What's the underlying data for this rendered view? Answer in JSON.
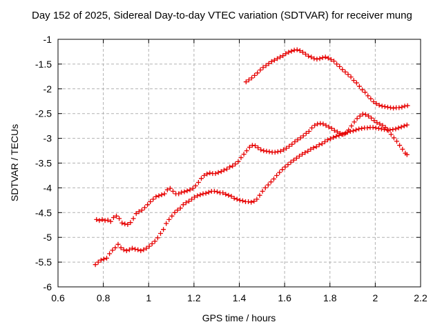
{
  "page": {
    "background": "#ffffff"
  },
  "chart_data": {
    "type": "scatter",
    "title": "Day 152 of 2025, Sidereal Day-to-day VTEC variation (SDTVAR) for receiver mung",
    "xlabel": "GPS time / hours",
    "ylabel": "SDTVAR / TECUs",
    "xlim": [
      0.6,
      2.2
    ],
    "ylim": [
      -6,
      -1
    ],
    "xticks": {
      "values": [
        0.6,
        0.8,
        1,
        1.2,
        1.4,
        1.6,
        1.8,
        2,
        2.2
      ],
      "labels": [
        "0.6",
        "0.8",
        "1",
        "1.2",
        "1.4",
        "1.6",
        "1.8",
        "2",
        "2.2"
      ]
    },
    "yticks": {
      "values": [
        -1,
        -1.5,
        -2,
        -2.5,
        -3,
        -3.5,
        -4,
        -4.5,
        -5,
        -5.5,
        -6
      ],
      "labels": [
        "-1",
        "-1.5",
        "-2",
        "-2.5",
        "-3",
        "-3.5",
        "-4",
        "-4.5",
        "-5",
        "-5.5",
        "-6"
      ]
    },
    "grid": true,
    "legend": "none",
    "marker": {
      "shape": "plus",
      "size": 7,
      "color": "#e60000"
    },
    "axis_color": "#000000",
    "grid_color": "#b0b0b0",
    "series": [
      {
        "name": "series-1",
        "points": [
          [
            1.43,
            -1.86
          ],
          [
            1.4425,
            -1.82
          ],
          [
            1.455,
            -1.78
          ],
          [
            1.4675,
            -1.73
          ],
          [
            1.48,
            -1.68
          ],
          [
            1.4925,
            -1.62
          ],
          [
            1.505,
            -1.57
          ],
          [
            1.5175,
            -1.53
          ],
          [
            1.53,
            -1.49
          ],
          [
            1.5425,
            -1.45
          ],
          [
            1.555,
            -1.42
          ],
          [
            1.5675,
            -1.39
          ],
          [
            1.58,
            -1.36
          ],
          [
            1.5925,
            -1.33
          ],
          [
            1.605,
            -1.29
          ],
          [
            1.6175,
            -1.26
          ],
          [
            1.63,
            -1.24
          ],
          [
            1.6425,
            -1.22
          ],
          [
            1.655,
            -1.21
          ],
          [
            1.6675,
            -1.23
          ],
          [
            1.68,
            -1.26
          ],
          [
            1.6925,
            -1.3
          ],
          [
            1.705,
            -1.34
          ],
          [
            1.7175,
            -1.36
          ],
          [
            1.73,
            -1.39
          ],
          [
            1.7425,
            -1.4
          ],
          [
            1.755,
            -1.39
          ],
          [
            1.7675,
            -1.37
          ],
          [
            1.78,
            -1.36
          ],
          [
            1.7925,
            -1.38
          ],
          [
            1.805,
            -1.41
          ],
          [
            1.8175,
            -1.44
          ],
          [
            1.83,
            -1.5
          ],
          [
            1.8425,
            -1.55
          ],
          [
            1.855,
            -1.61
          ],
          [
            1.8675,
            -1.66
          ],
          [
            1.88,
            -1.71
          ],
          [
            1.8925,
            -1.76
          ],
          [
            1.905,
            -1.83
          ],
          [
            1.9175,
            -1.88
          ],
          [
            1.93,
            -1.95
          ],
          [
            1.9425,
            -2.02
          ],
          [
            1.955,
            -2.07
          ],
          [
            1.9675,
            -2.14
          ],
          [
            1.98,
            -2.2
          ],
          [
            1.9925,
            -2.26
          ],
          [
            2.005,
            -2.3
          ],
          [
            2.0175,
            -2.33
          ],
          [
            2.03,
            -2.35
          ],
          [
            2.0425,
            -2.36
          ],
          [
            2.055,
            -2.37
          ],
          [
            2.0675,
            -2.38
          ],
          [
            2.08,
            -2.39
          ],
          [
            2.0925,
            -2.38
          ],
          [
            2.105,
            -2.38
          ],
          [
            2.1175,
            -2.37
          ],
          [
            2.13,
            -2.35
          ],
          [
            2.1425,
            -2.34
          ]
        ]
      },
      {
        "name": "series-2",
        "points": [
          [
            0.77,
            -4.64
          ],
          [
            0.7825,
            -4.66
          ],
          [
            0.795,
            -4.64
          ],
          [
            0.8075,
            -4.66
          ],
          [
            0.82,
            -4.65
          ],
          [
            0.8325,
            -4.68
          ],
          [
            0.845,
            -4.6
          ],
          [
            0.8575,
            -4.57
          ],
          [
            0.87,
            -4.62
          ],
          [
            0.8825,
            -4.71
          ],
          [
            0.895,
            -4.73
          ],
          [
            0.9075,
            -4.74
          ],
          [
            0.92,
            -4.7
          ],
          [
            0.9325,
            -4.62
          ],
          [
            0.945,
            -4.52
          ],
          [
            0.9575,
            -4.48
          ],
          [
            0.97,
            -4.45
          ],
          [
            0.9825,
            -4.4
          ],
          [
            0.995,
            -4.34
          ],
          [
            1.0075,
            -4.28
          ],
          [
            1.02,
            -4.23
          ],
          [
            1.0325,
            -4.18
          ],
          [
            1.045,
            -4.16
          ],
          [
            1.0575,
            -4.14
          ],
          [
            1.07,
            -4.12
          ],
          [
            1.0825,
            -4.04
          ],
          [
            1.095,
            -4.01
          ],
          [
            1.1075,
            -4.07
          ],
          [
            1.12,
            -4.12
          ],
          [
            1.1325,
            -4.12
          ],
          [
            1.145,
            -4.09
          ],
          [
            1.1575,
            -4.08
          ],
          [
            1.17,
            -4.06
          ],
          [
            1.1825,
            -4.04
          ],
          [
            1.195,
            -4.01
          ],
          [
            1.2075,
            -3.96
          ],
          [
            1.22,
            -3.89
          ],
          [
            1.2325,
            -3.81
          ],
          [
            1.245,
            -3.75
          ],
          [
            1.2575,
            -3.72
          ],
          [
            1.27,
            -3.7
          ],
          [
            1.2825,
            -3.71
          ],
          [
            1.295,
            -3.71
          ],
          [
            1.3075,
            -3.69
          ],
          [
            1.32,
            -3.67
          ],
          [
            1.3325,
            -3.64
          ],
          [
            1.345,
            -3.62
          ],
          [
            1.3575,
            -3.58
          ],
          [
            1.37,
            -3.56
          ],
          [
            1.3825,
            -3.52
          ],
          [
            1.395,
            -3.47
          ],
          [
            1.4075,
            -3.39
          ],
          [
            1.42,
            -3.32
          ],
          [
            1.4325,
            -3.25
          ],
          [
            1.445,
            -3.18
          ],
          [
            1.4575,
            -3.14
          ],
          [
            1.47,
            -3.15
          ],
          [
            1.4825,
            -3.19
          ],
          [
            1.495,
            -3.23
          ],
          [
            1.5075,
            -3.25
          ],
          [
            1.52,
            -3.26
          ],
          [
            1.5325,
            -3.27
          ],
          [
            1.545,
            -3.28
          ],
          [
            1.5575,
            -3.28
          ],
          [
            1.57,
            -3.27
          ],
          [
            1.5825,
            -3.26
          ],
          [
            1.595,
            -3.23
          ],
          [
            1.6075,
            -3.2
          ],
          [
            1.62,
            -3.16
          ],
          [
            1.6325,
            -3.12
          ],
          [
            1.645,
            -3.07
          ],
          [
            1.6575,
            -3.03
          ],
          [
            1.67,
            -2.99
          ],
          [
            1.6825,
            -2.95
          ],
          [
            1.695,
            -2.9
          ],
          [
            1.7075,
            -2.86
          ],
          [
            1.72,
            -2.79
          ],
          [
            1.7325,
            -2.74
          ],
          [
            1.745,
            -2.71
          ],
          [
            1.7575,
            -2.7
          ],
          [
            1.77,
            -2.71
          ],
          [
            1.7825,
            -2.74
          ],
          [
            1.795,
            -2.77
          ],
          [
            1.8075,
            -2.8
          ],
          [
            1.82,
            -2.84
          ],
          [
            1.8325,
            -2.87
          ],
          [
            1.845,
            -2.9
          ],
          [
            1.8575,
            -2.92
          ],
          [
            1.87,
            -2.89
          ],
          [
            1.8825,
            -2.83
          ],
          [
            1.895,
            -2.75
          ],
          [
            1.9075,
            -2.67
          ],
          [
            1.92,
            -2.6
          ],
          [
            1.9325,
            -2.55
          ],
          [
            1.945,
            -2.51
          ],
          [
            1.9575,
            -2.52
          ],
          [
            1.97,
            -2.55
          ],
          [
            1.9825,
            -2.59
          ],
          [
            1.995,
            -2.64
          ],
          [
            2.0075,
            -2.68
          ],
          [
            2.02,
            -2.71
          ],
          [
            2.0325,
            -2.74
          ],
          [
            2.045,
            -2.78
          ],
          [
            2.0575,
            -2.84
          ],
          [
            2.07,
            -2.92
          ],
          [
            2.0825,
            -2.99
          ],
          [
            2.095,
            -3.06
          ],
          [
            2.1075,
            -3.14
          ],
          [
            2.12,
            -3.22
          ],
          [
            2.1325,
            -3.3
          ],
          [
            2.14,
            -3.33
          ]
        ]
      },
      {
        "name": "series-3",
        "points": [
          [
            0.765,
            -5.55
          ],
          [
            0.7775,
            -5.5
          ],
          [
            0.79,
            -5.46
          ],
          [
            0.8025,
            -5.44
          ],
          [
            0.815,
            -5.42
          ],
          [
            0.8275,
            -5.33
          ],
          [
            0.84,
            -5.26
          ],
          [
            0.8525,
            -5.21
          ],
          [
            0.865,
            -5.14
          ],
          [
            0.8775,
            -5.21
          ],
          [
            0.89,
            -5.25
          ],
          [
            0.9025,
            -5.27
          ],
          [
            0.915,
            -5.25
          ],
          [
            0.9275,
            -5.22
          ],
          [
            0.94,
            -5.24
          ],
          [
            0.9525,
            -5.25
          ],
          [
            0.965,
            -5.27
          ],
          [
            0.9775,
            -5.25
          ],
          [
            0.99,
            -5.22
          ],
          [
            1.0025,
            -5.18
          ],
          [
            1.015,
            -5.13
          ],
          [
            1.0275,
            -5.08
          ],
          [
            1.04,
            -5.01
          ],
          [
            1.0525,
            -4.92
          ],
          [
            1.065,
            -4.84
          ],
          [
            1.0775,
            -4.72
          ],
          [
            1.09,
            -4.64
          ],
          [
            1.1025,
            -4.57
          ],
          [
            1.115,
            -4.5
          ],
          [
            1.1275,
            -4.45
          ],
          [
            1.14,
            -4.41
          ],
          [
            1.1525,
            -4.34
          ],
          [
            1.165,
            -4.3
          ],
          [
            1.1775,
            -4.27
          ],
          [
            1.19,
            -4.23
          ],
          [
            1.2025,
            -4.19
          ],
          [
            1.215,
            -4.16
          ],
          [
            1.2275,
            -4.14
          ],
          [
            1.24,
            -4.12
          ],
          [
            1.2525,
            -4.11
          ],
          [
            1.265,
            -4.09
          ],
          [
            1.2775,
            -4.07
          ],
          [
            1.29,
            -4.07
          ],
          [
            1.3025,
            -4.08
          ],
          [
            1.315,
            -4.1
          ],
          [
            1.3275,
            -4.1
          ],
          [
            1.34,
            -4.13
          ],
          [
            1.3525,
            -4.15
          ],
          [
            1.365,
            -4.17
          ],
          [
            1.3775,
            -4.21
          ],
          [
            1.39,
            -4.23
          ],
          [
            1.4025,
            -4.25
          ],
          [
            1.415,
            -4.26
          ],
          [
            1.4275,
            -4.28
          ],
          [
            1.44,
            -4.28
          ],
          [
            1.4525,
            -4.29
          ],
          [
            1.465,
            -4.27
          ],
          [
            1.4775,
            -4.23
          ],
          [
            1.49,
            -4.15
          ],
          [
            1.5025,
            -4.07
          ],
          [
            1.515,
            -4.0
          ],
          [
            1.5275,
            -3.94
          ],
          [
            1.54,
            -3.88
          ],
          [
            1.5525,
            -3.82
          ],
          [
            1.565,
            -3.75
          ],
          [
            1.5775,
            -3.69
          ],
          [
            1.59,
            -3.63
          ],
          [
            1.6025,
            -3.58
          ],
          [
            1.615,
            -3.53
          ],
          [
            1.6275,
            -3.48
          ],
          [
            1.64,
            -3.44
          ],
          [
            1.6525,
            -3.4
          ],
          [
            1.665,
            -3.36
          ],
          [
            1.6775,
            -3.32
          ],
          [
            1.69,
            -3.29
          ],
          [
            1.7025,
            -3.26
          ],
          [
            1.715,
            -3.22
          ],
          [
            1.7275,
            -3.19
          ],
          [
            1.74,
            -3.17
          ],
          [
            1.7525,
            -3.13
          ],
          [
            1.765,
            -3.11
          ],
          [
            1.7775,
            -3.07
          ],
          [
            1.79,
            -3.03
          ],
          [
            1.8025,
            -3.01
          ],
          [
            1.815,
            -2.98
          ],
          [
            1.8275,
            -2.96
          ],
          [
            1.84,
            -2.94
          ],
          [
            1.8525,
            -2.92
          ],
          [
            1.865,
            -2.91
          ],
          [
            1.8775,
            -2.88
          ],
          [
            1.89,
            -2.86
          ],
          [
            1.9025,
            -2.85
          ],
          [
            1.915,
            -2.83
          ],
          [
            1.9275,
            -2.81
          ],
          [
            1.94,
            -2.8
          ],
          [
            1.9525,
            -2.79
          ],
          [
            1.965,
            -2.79
          ],
          [
            1.9775,
            -2.78
          ],
          [
            1.99,
            -2.78
          ],
          [
            2.0025,
            -2.79
          ],
          [
            2.015,
            -2.8
          ],
          [
            2.0275,
            -2.81
          ],
          [
            2.04,
            -2.82
          ],
          [
            2.0525,
            -2.83
          ],
          [
            2.065,
            -2.83
          ],
          [
            2.0775,
            -2.82
          ],
          [
            2.09,
            -2.81
          ],
          [
            2.1025,
            -2.79
          ],
          [
            2.115,
            -2.77
          ],
          [
            2.1275,
            -2.75
          ],
          [
            2.14,
            -2.73
          ]
        ]
      }
    ]
  }
}
